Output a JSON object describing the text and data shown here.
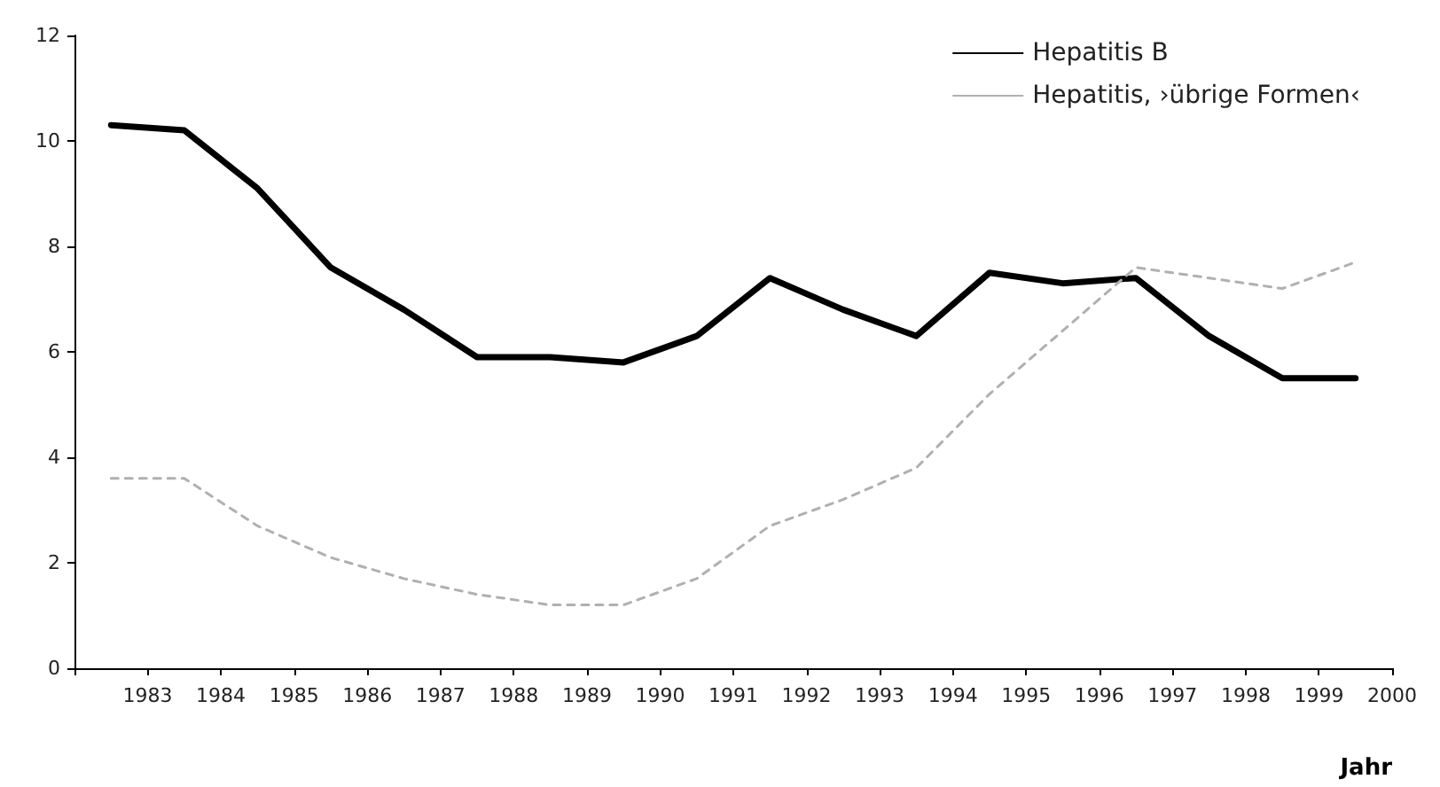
{
  "chart_data": {
    "type": "line",
    "xlabel": "Jahr",
    "x": [
      1982.5,
      1983.5,
      1984.5,
      1985.5,
      1986.5,
      1987.5,
      1988.5,
      1989.5,
      1990.5,
      1991.5,
      1992.5,
      1993.5,
      1994.5,
      1995.5,
      1996.5,
      1997.5,
      1998.5,
      1999.5
    ],
    "series": [
      {
        "name": "Hepatitis B",
        "color": "#000000",
        "line_style": "solid",
        "values": [
          10.3,
          10.2,
          9.1,
          7.6,
          6.8,
          5.9,
          5.9,
          5.8,
          6.3,
          7.4,
          6.8,
          6.3,
          7.5,
          7.3,
          7.4,
          6.3,
          5.5,
          5.5
        ]
      },
      {
        "name": "Hepatitis, ›übrige Formen‹",
        "color": "#b0b0b0",
        "line_style": "dashed",
        "values": [
          3.6,
          3.6,
          2.7,
          2.1,
          1.7,
          1.4,
          1.2,
          1.2,
          1.7,
          2.7,
          3.2,
          3.8,
          5.2,
          6.4,
          7.6,
          7.4,
          7.2,
          7.7
        ]
      }
    ],
    "xlim": [
      1982,
      2000
    ],
    "xticks": [
      {
        "value": 1982,
        "label": null
      },
      1983,
      1984,
      1985,
      1986,
      1987,
      1988,
      1989,
      1990,
      1991,
      1992,
      1993,
      1994,
      1995,
      1996,
      1997,
      1998,
      1999,
      2000
    ],
    "ylim": [
      0,
      12
    ],
    "yticks": [
      0,
      2,
      4,
      6,
      8,
      10,
      12
    ],
    "grid": false,
    "legend": "top right",
    "marker": "none"
  }
}
